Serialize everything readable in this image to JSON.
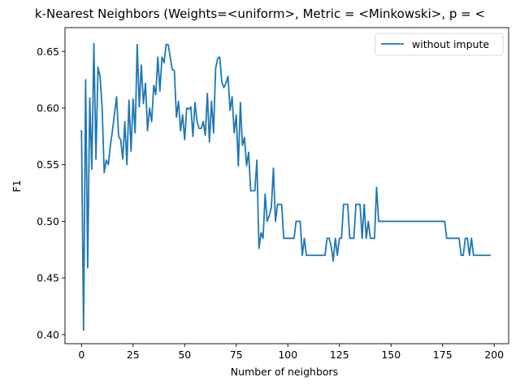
{
  "chart_data": {
    "type": "line",
    "title": "k-Nearest Neighbors (Weights=<uniform>, Metric = <Minkowski>, p = <",
    "xlabel": "Number of neighbors",
    "ylabel": "F1",
    "xlim": [
      -8,
      207
    ],
    "ylim": [
      0.392,
      0.671
    ],
    "xticks": [
      0,
      25,
      50,
      75,
      100,
      125,
      150,
      175,
      200
    ],
    "yticks": [
      0.4,
      0.45,
      0.5,
      0.55,
      0.6,
      0.65
    ],
    "xtick_labels": [
      "0",
      "25",
      "50",
      "75",
      "100",
      "125",
      "150",
      "175",
      "200"
    ],
    "ytick_labels": [
      "0.40",
      "0.45",
      "0.50",
      "0.55",
      "0.60",
      "0.65"
    ],
    "grid": false,
    "legend_position": "upper right",
    "series": [
      {
        "name": "without impute",
        "color": "#1f77b4",
        "x": [
          0,
          1,
          2,
          3,
          4,
          5,
          6,
          7,
          8,
          9,
          10,
          11,
          12,
          13,
          14,
          15,
          16,
          17,
          18,
          19,
          20,
          21,
          22,
          23,
          24,
          25,
          26,
          27,
          28,
          29,
          30,
          31,
          32,
          33,
          34,
          35,
          36,
          37,
          38,
          39,
          40,
          41,
          42,
          43,
          44,
          45,
          46,
          47,
          48,
          49,
          50,
          51,
          52,
          53,
          54,
          55,
          56,
          57,
          58,
          59,
          60,
          61,
          62,
          63,
          64,
          65,
          66,
          67,
          68,
          69,
          70,
          71,
          72,
          73,
          74,
          75,
          76,
          77,
          78,
          79,
          80,
          81,
          82,
          83,
          84,
          85,
          86,
          87,
          88,
          89,
          90,
          91,
          92,
          93,
          94,
          95,
          96,
          97,
          98,
          99,
          100,
          101,
          102,
          103,
          104,
          105,
          106,
          107,
          108,
          109,
          110,
          111,
          112,
          113,
          114,
          115,
          116,
          117,
          118,
          119,
          120,
          121,
          122,
          123,
          124,
          125,
          126,
          127,
          128,
          129,
          130,
          131,
          132,
          133,
          134,
          135,
          136,
          137,
          138,
          139,
          140,
          141,
          142,
          143,
          144,
          145,
          176,
          177,
          183,
          184,
          185,
          186,
          187,
          188,
          189,
          190,
          198
        ],
        "y": [
          0.58,
          0.404,
          0.625,
          0.459,
          0.609,
          0.546,
          0.657,
          0.555,
          0.636,
          0.628,
          0.6,
          0.543,
          0.554,
          0.55,
          0.567,
          0.58,
          0.595,
          0.61,
          0.575,
          0.572,
          0.555,
          0.588,
          0.55,
          0.607,
          0.562,
          0.608,
          0.578,
          0.656,
          0.601,
          0.638,
          0.604,
          0.622,
          0.58,
          0.6,
          0.588,
          0.62,
          0.612,
          0.645,
          0.615,
          0.645,
          0.64,
          0.656,
          0.656,
          0.645,
          0.634,
          0.633,
          0.592,
          0.606,
          0.58,
          0.594,
          0.572,
          0.6,
          0.599,
          0.601,
          0.575,
          0.605,
          0.588,
          0.582,
          0.582,
          0.588,
          0.576,
          0.613,
          0.57,
          0.606,
          0.578,
          0.635,
          0.644,
          0.645,
          0.623,
          0.618,
          0.622,
          0.628,
          0.598,
          0.61,
          0.578,
          0.594,
          0.549,
          0.605,
          0.567,
          0.574,
          0.549,
          0.561,
          0.527,
          0.527,
          0.527,
          0.554,
          0.476,
          0.49,
          0.485,
          0.524,
          0.5,
          0.505,
          0.512,
          0.547,
          0.5,
          0.515,
          0.515,
          0.515,
          0.485,
          0.485,
          0.485,
          0.485,
          0.485,
          0.485,
          0.5,
          0.5,
          0.5,
          0.47,
          0.485,
          0.47,
          0.47,
          0.47,
          0.47,
          0.47,
          0.47,
          0.47,
          0.47,
          0.47,
          0.47,
          0.485,
          0.485,
          0.478,
          0.465,
          0.485,
          0.47,
          0.485,
          0.485,
          0.515,
          0.515,
          0.515,
          0.485,
          0.485,
          0.485,
          0.515,
          0.515,
          0.515,
          0.485,
          0.515,
          0.485,
          0.5,
          0.485,
          0.485,
          0.485,
          0.53,
          0.5,
          0.5,
          0.5,
          0.485,
          0.485,
          0.47,
          0.47,
          0.485,
          0.485,
          0.47,
          0.485,
          0.47,
          0.47
        ]
      }
    ]
  }
}
